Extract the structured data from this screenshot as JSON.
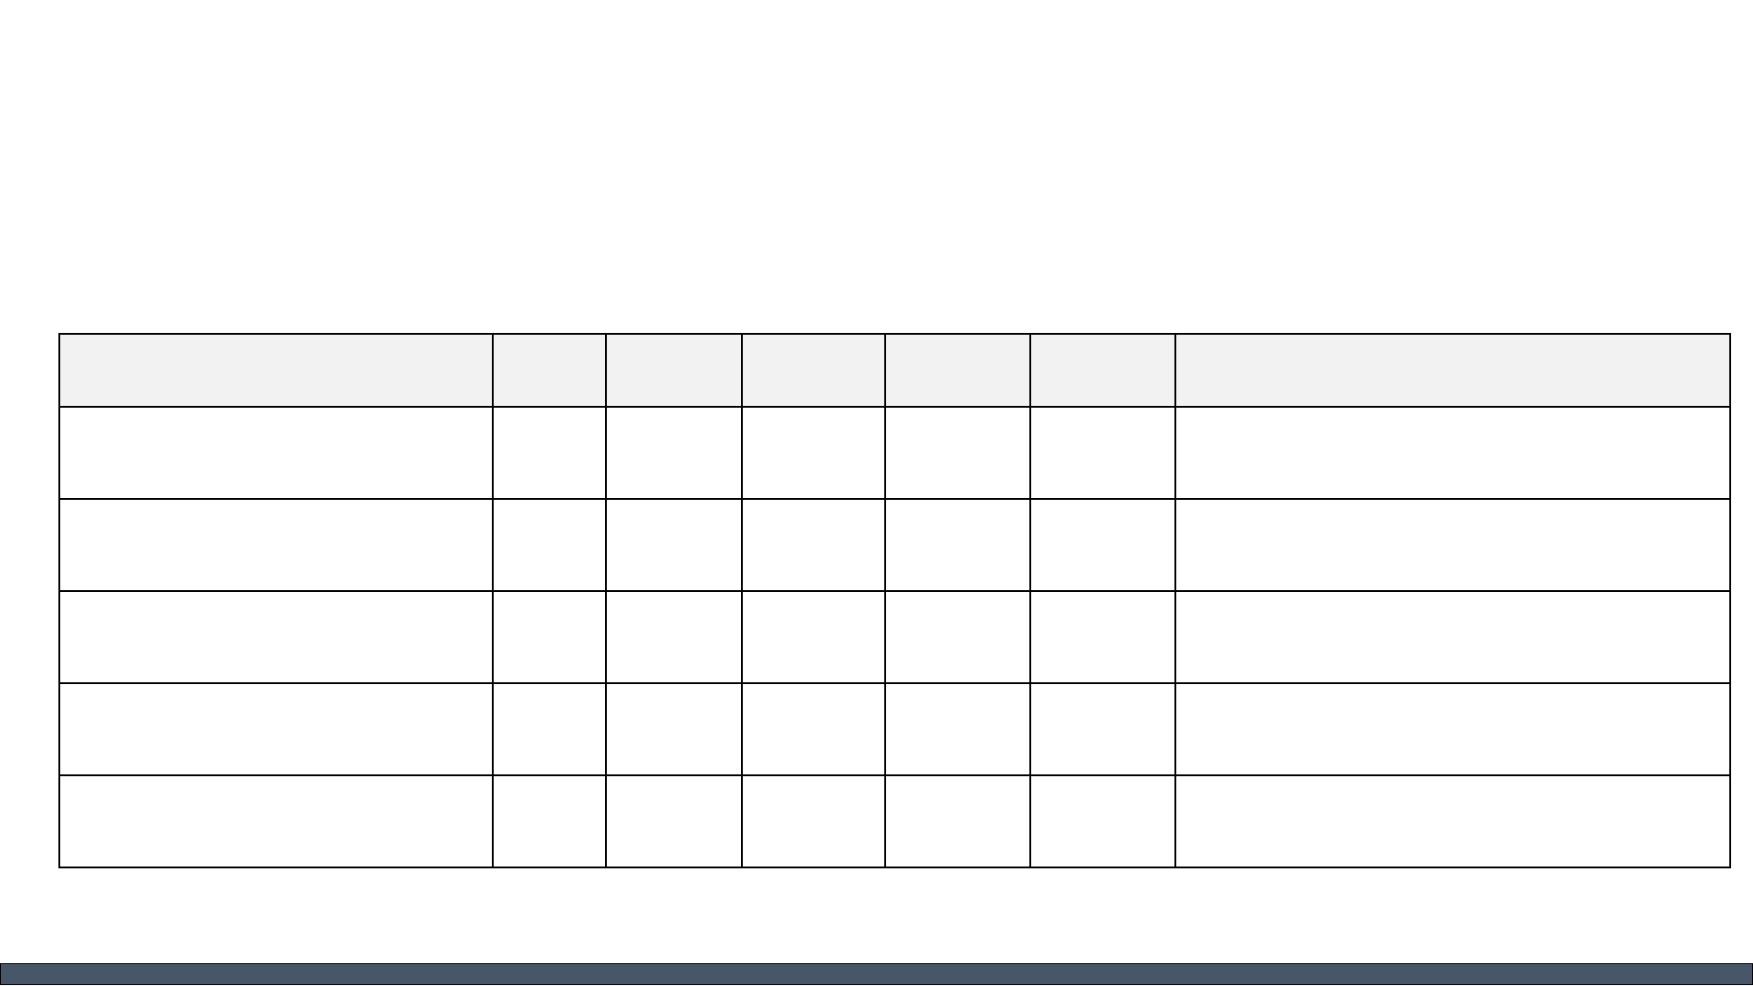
{
  "table": {
    "header_fill": "#f2f2f2",
    "border_color": "#000000",
    "columns": [
      "",
      "",
      "",
      "",
      "",
      "",
      ""
    ],
    "rows": [
      [
        "",
        "",
        "",
        "",
        "",
        "",
        ""
      ],
      [
        "",
        "",
        "",
        "",
        "",
        "",
        ""
      ],
      [
        "",
        "",
        "",
        "",
        "",
        "",
        ""
      ],
      [
        "",
        "",
        "",
        "",
        "",
        "",
        ""
      ],
      [
        "",
        "",
        "",
        "",
        "",
        "",
        ""
      ]
    ]
  },
  "footer": {
    "bar_color": "#475669"
  }
}
